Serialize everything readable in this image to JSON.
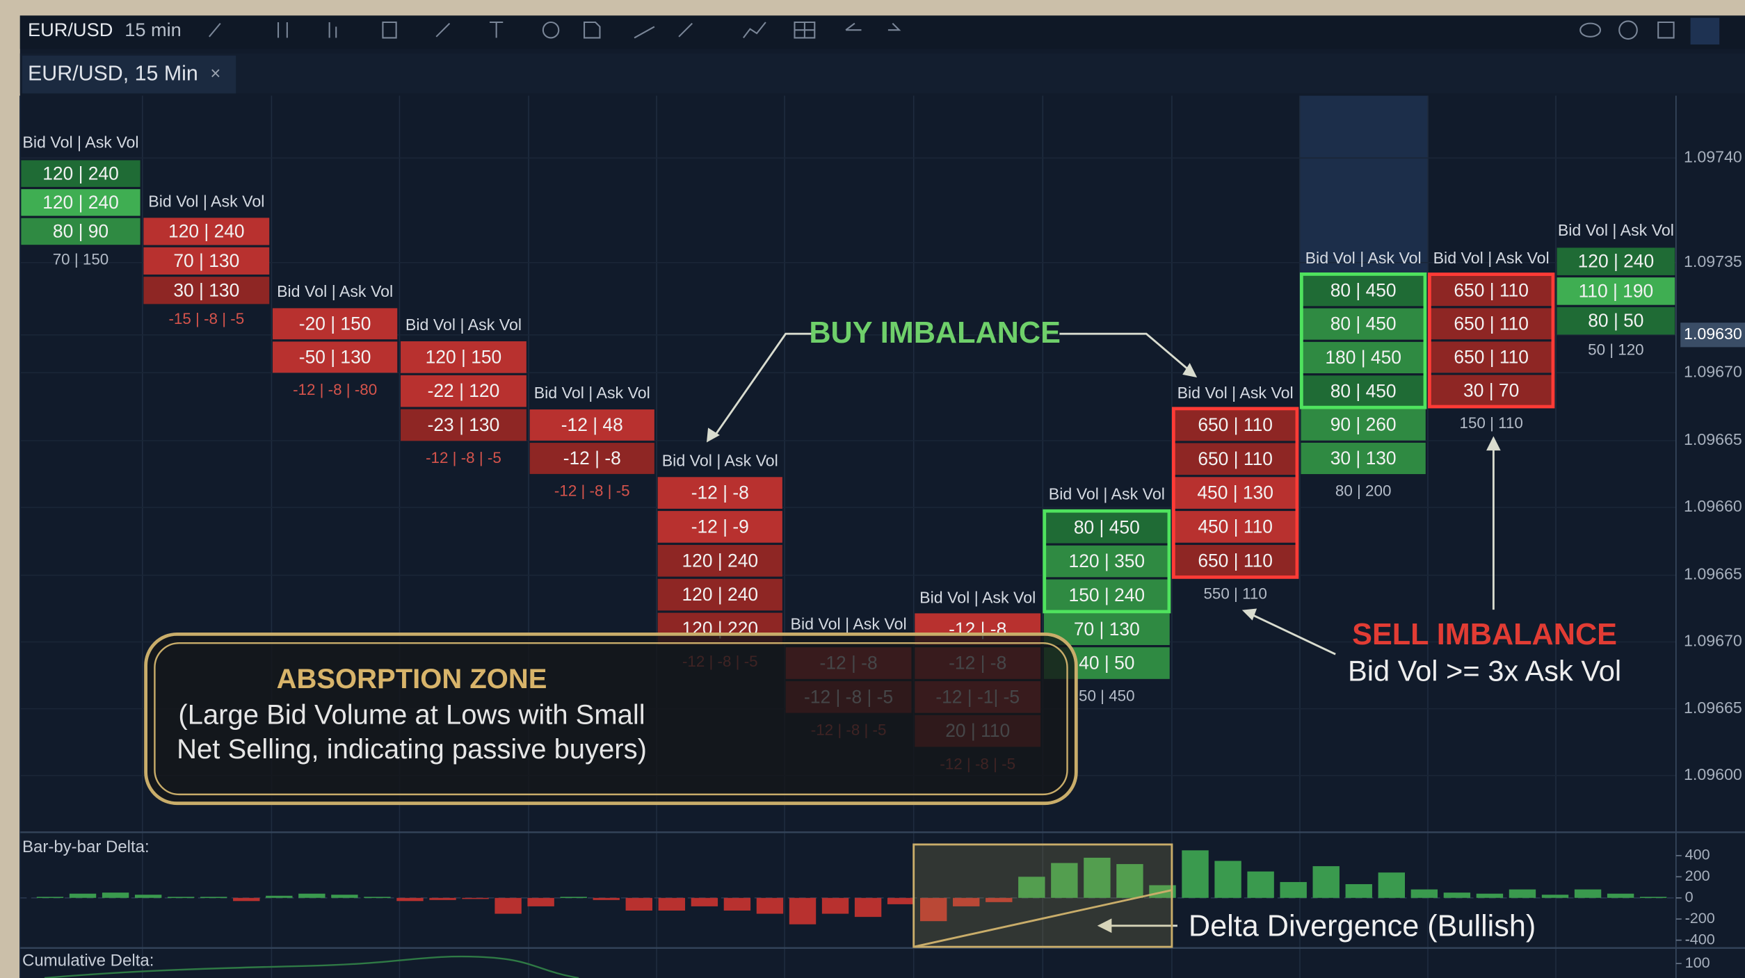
{
  "toolbar": {
    "symbol": "EUR/USD",
    "interval": "15 min"
  },
  "tab": {
    "title": "EUR/USD, 15 Min",
    "close": "×"
  },
  "columns": [
    {
      "header": "Bid Vol | Ask Vol",
      "cells": [
        {
          "text": "120 | 240",
          "color": "dark-green"
        },
        {
          "text": "120 | 240",
          "color": "light-green"
        },
        {
          "text": "80 | 90",
          "color": "green"
        }
      ],
      "footer": "70 | 150",
      "footer_color": "gray"
    },
    {
      "header": "Bid Vol | Ask Vol",
      "cells": [
        {
          "text": "120 | 240",
          "color": "red"
        },
        {
          "text": "70 | 130",
          "color": "red"
        },
        {
          "text": "30 | 130",
          "color": "dark-red"
        }
      ],
      "footer": "-15 | -8 | -5",
      "footer_color": "red"
    },
    {
      "header": "Bid Vol | Ask Vol",
      "cells": [
        {
          "text": "-20 | 150",
          "color": "red"
        },
        {
          "text": "-50 | 130",
          "color": "red"
        }
      ],
      "footer": "-12 | -8 | -80",
      "footer_color": "red"
    },
    {
      "header": "Bid Vol | Ask Vol",
      "cells": [
        {
          "text": "120 | 150",
          "color": "red"
        },
        {
          "text": "-22 | 120",
          "color": "red"
        },
        {
          "text": "-23 | 130",
          "color": "dark-red"
        }
      ],
      "footer": "-12 | -8 | -5",
      "footer_color": "red"
    },
    {
      "header": "Bid Vol | Ask Vol",
      "cells": [
        {
          "text": "-12 | 48",
          "color": "red"
        },
        {
          "text": "-12 | -8",
          "color": "dark-red"
        }
      ],
      "footer": "-12 | -8 | -5",
      "footer_color": "red"
    },
    {
      "header": "Bid Vol | Ask Vol",
      "cells": [
        {
          "text": "-12 | -8",
          "color": "red"
        },
        {
          "text": "-12 | -9",
          "color": "red"
        },
        {
          "text": "120 | 240",
          "color": "dark-red"
        },
        {
          "text": "120 | 240",
          "color": "dark-red"
        },
        {
          "text": "120 | 220",
          "color": "dark-red"
        }
      ],
      "footer": "-12 | -8 | -5",
      "footer_color": "red"
    },
    {
      "header": "Bid Vol | Ask Vol",
      "cells": [
        {
          "text": "-12 | -8",
          "color": "red"
        },
        {
          "text": "-12 | -8 | -5",
          "color": "dark-red"
        }
      ],
      "footer": "-12 | -8 | -5",
      "footer_color": "red"
    },
    {
      "header": "Bid Vol | Ask Vol",
      "cells": [
        {
          "text": "-12 | -8",
          "color": "red"
        },
        {
          "text": "-12 | -8",
          "color": "red"
        },
        {
          "text": "-12 | -1| -5",
          "color": "red"
        },
        {
          "text": "20 | 110",
          "color": "dark-red"
        }
      ],
      "footer": "-12 | -8 | -5",
      "footer_color": "red"
    },
    {
      "header": "Bid Vol | Ask Vol",
      "cells": [
        {
          "text": "80 | 450",
          "color": "dark-green",
          "outline": true
        },
        {
          "text": "120 | 350",
          "color": "green",
          "outline": true
        },
        {
          "text": "150 | 240",
          "color": "green",
          "outline": true
        },
        {
          "text": "70 | 130",
          "color": "green"
        },
        {
          "text": "40 | 50",
          "color": "green"
        }
      ],
      "footer": "50 | 450",
      "footer_color": "gray"
    },
    {
      "header": "Bid Vol | Ask Vol",
      "cells": [
        {
          "text": "650 | 110",
          "color": "dark-red",
          "outline": true
        },
        {
          "text": "650 | 110",
          "color": "dark-red",
          "outline": true
        },
        {
          "text": "450 | 130",
          "color": "red",
          "outline": true
        },
        {
          "text": "450 | 110",
          "color": "red",
          "outline": true
        },
        {
          "text": "650 | 110",
          "color": "dark-red",
          "outline": true
        }
      ],
      "footer": "550 | 110",
      "footer_color": "gray"
    },
    {
      "header": "Bid Vol | Ask Vol",
      "cells": [
        {
          "text": "80 | 450",
          "color": "dark-green",
          "outline": true
        },
        {
          "text": "80 | 450",
          "color": "green",
          "outline": true
        },
        {
          "text": "180 | 450",
          "color": "green",
          "outline": true
        },
        {
          "text": "80 | 450",
          "color": "dark-green",
          "outline": true
        },
        {
          "text": "90 | 260",
          "color": "green"
        },
        {
          "text": "30 | 130",
          "color": "green"
        }
      ],
      "footer": "80 | 200",
      "footer_color": "gray"
    },
    {
      "header": "Bid Vol | Ask Vol",
      "cells": [
        {
          "text": "650 | 110",
          "color": "dark-red",
          "outline": true
        },
        {
          "text": "650 | 110",
          "color": "dark-red",
          "outline": true
        },
        {
          "text": "650 | 110",
          "color": "dark-red",
          "outline": true
        },
        {
          "text": "30 | 70",
          "color": "dark-red",
          "outline": true
        }
      ],
      "footer": "150 | 110",
      "footer_color": "gray"
    },
    {
      "header": "Bid Vol | Ask Vol",
      "cells": [
        {
          "text": "120 | 240",
          "color": "dark-green"
        },
        {
          "text": "110 | 190",
          "color": "light-green"
        },
        {
          "text": "80 | 50",
          "color": "dark-green"
        }
      ],
      "footer": "50 | 120",
      "footer_color": "gray"
    }
  ],
  "price_axis": [
    "1.09740",
    "1.09735",
    "1.09630",
    "1.09670",
    "1.09665",
    "1.09660",
    "1.09665",
    "1.09670",
    "1.09665",
    "1.09600"
  ],
  "current_price_index": 2,
  "annotations": {
    "buy_imbalance": "BUY IMBALANCE",
    "sell_imbalance": "SELL IMBALANCE",
    "sell_rule": "Bid Vol >= 3x Ask Vol",
    "absorption_title": "ABSORPTION ZONE",
    "absorption_lines": [
      "(Large Bid Volume at Lows with Small",
      "Net Selling, indicating passive buyers)"
    ],
    "delta_divergence": "Delta Divergence (Bullish)"
  },
  "delta_panel": {
    "label": "Bar-by-bar Delta:",
    "ylim": [
      -500,
      500
    ],
    "yticks": [
      400,
      200,
      0,
      -200,
      -400
    ],
    "values": [
      10,
      40,
      50,
      30,
      10,
      10,
      -30,
      20,
      40,
      30,
      10,
      -30,
      -20,
      -10,
      -150,
      -80,
      10,
      -20,
      -120,
      -120,
      -80,
      -120,
      -150,
      -250,
      -150,
      -180,
      -60,
      -220,
      -80,
      -40,
      200,
      330,
      380,
      320,
      120,
      450,
      350,
      250,
      150,
      300,
      130,
      240,
      80,
      50,
      40,
      80,
      30,
      80,
      40,
      10
    ],
    "positive_color": "#3a9a4e",
    "negative_color": "#b8312f"
  },
  "cumulative_panel": {
    "label": "Cumulative Delta:",
    "yticks": [
      100
    ]
  }
}
